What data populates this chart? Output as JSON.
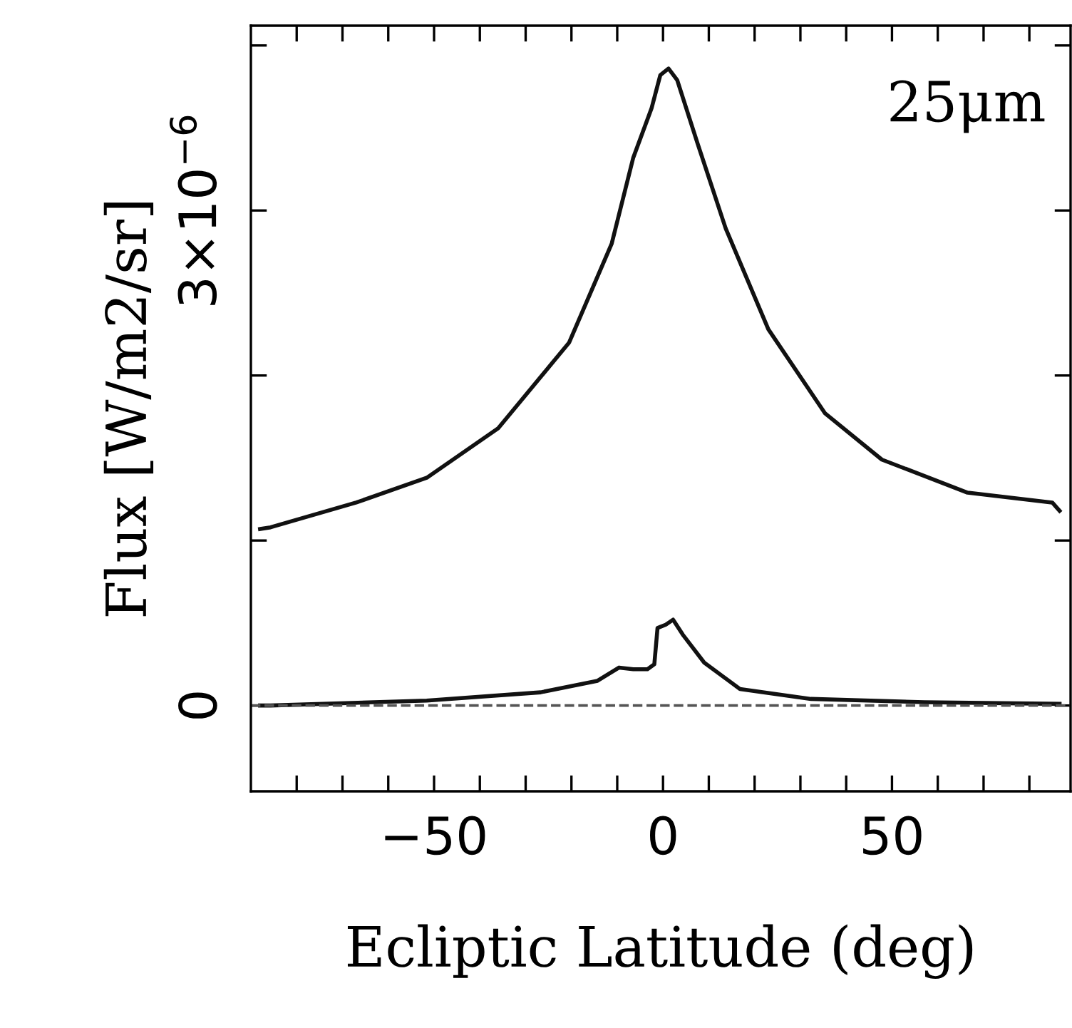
{
  "chart_data": {
    "type": "line",
    "xlabel": "Ecliptic Latitude (deg)",
    "ylabel": "Flux [W/m2/sr]",
    "annotations": [
      "25μm"
    ],
    "xlim": [
      -90,
      89
    ],
    "ylim": [
      -5.2e-07,
      4.12e-06
    ],
    "xticks": [
      {
        "value": -80,
        "label": null
      },
      {
        "value": -70,
        "label": null
      },
      {
        "value": -60,
        "label": null
      },
      -50,
      {
        "value": -40,
        "label": null
      },
      {
        "value": -30,
        "label": null
      },
      {
        "value": -20,
        "label": null
      },
      {
        "value": -10,
        "label": null
      },
      0,
      {
        "value": 10,
        "label": null
      },
      {
        "value": 20,
        "label": null
      },
      {
        "value": 30,
        "label": null
      },
      {
        "value": 40,
        "label": null
      },
      50,
      {
        "value": 60,
        "label": null
      },
      {
        "value": 70,
        "label": null
      },
      {
        "value": 80,
        "label": null
      }
    ],
    "yticks": [
      {
        "value": 0,
        "label": "0"
      },
      {
        "value": 1e-06,
        "label": null
      },
      {
        "value": 2e-06,
        "label": null
      },
      {
        "value": 3e-06,
        "label": "3×10$^{−6}$"
      },
      {
        "value": 4e-06,
        "label": null
      }
    ],
    "grid": false,
    "legend": false,
    "marker": "none",
    "ref_lines": [
      {
        "axis": "y",
        "value": 0,
        "line_style": "dashed",
        "color": "#555555"
      }
    ],
    "series": [
      {
        "color": "#111111",
        "x": [
          -88,
          -85.7,
          -67,
          -51.6,
          -36,
          -20.5,
          -11.2,
          -6.5,
          -2.5,
          -0.6,
          1.2,
          3.1,
          7.5,
          13.7,
          23,
          35.4,
          47.8,
          66.5,
          85,
          86.6
        ],
        "values": [
          1.07e-06,
          1.08e-06,
          1.23e-06,
          1.38e-06,
          1.68e-06,
          2.2e-06,
          2.8e-06,
          3.32e-06,
          3.62e-06,
          3.82e-06,
          3.86e-06,
          3.79e-06,
          3.41e-06,
          2.89e-06,
          2.28e-06,
          1.77e-06,
          1.49e-06,
          1.29e-06,
          1.23e-06,
          1.18e-06
        ]
      },
      {
        "color": "#111111",
        "x": [
          -88,
          -85.7,
          -51.6,
          -26.7,
          -14.3,
          -9.6,
          -6.5,
          -3.4,
          -1.9,
          -1.2,
          0.6,
          2.2,
          4.3,
          9,
          16.8,
          32.3,
          57,
          86.6
        ],
        "values": [
          0.0,
          0.0,
          3e-08,
          8e-08,
          1.5e-07,
          2.3e-07,
          2.2e-07,
          2.2e-07,
          2.5e-07,
          4.7e-07,
          4.9e-07,
          5.2e-07,
          4.3e-07,
          2.6e-07,
          1e-07,
          4e-08,
          2e-08,
          1e-08
        ]
      }
    ]
  }
}
